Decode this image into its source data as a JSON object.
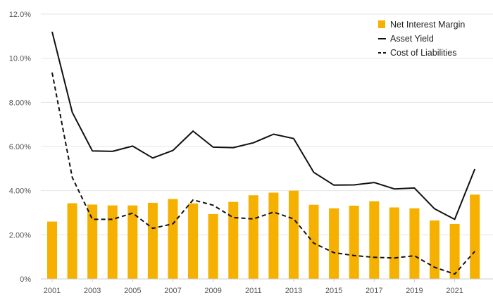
{
  "chart_data": {
    "type": "bar",
    "title": "",
    "xlabel": "",
    "ylabel": "",
    "ylim": [
      0,
      12
    ],
    "grid": true,
    "legend_position": "top-right",
    "categories": [
      "2001",
      "2002",
      "2003",
      "2004",
      "2005",
      "2006",
      "2007",
      "2008",
      "2009",
      "2010",
      "2011",
      "2012",
      "2013",
      "2014",
      "2015",
      "2016",
      "2017",
      "2018",
      "2019",
      "2020",
      "2021",
      "2022"
    ],
    "x_tick_labels": [
      "2001",
      "2003",
      "2005",
      "2007",
      "2009",
      "2011",
      "2013",
      "2015",
      "2017",
      "2019",
      "2021"
    ],
    "y_ticks": [
      0,
      2,
      4,
      6,
      8,
      10,
      12
    ],
    "y_tick_labels": [
      "0%",
      "2.00%",
      "4.00%",
      "6.00%",
      "8.00%",
      "10.0%",
      "12.0%"
    ],
    "series": [
      {
        "name": "Net Interest Margin",
        "kind": "bar",
        "color": "#f5b000",
        "values": [
          2.6,
          3.43,
          3.37,
          3.33,
          3.33,
          3.45,
          3.62,
          3.42,
          2.94,
          3.49,
          3.79,
          3.91,
          4.0,
          3.36,
          3.2,
          3.32,
          3.52,
          3.24,
          3.2,
          2.65,
          2.49,
          3.82
        ]
      },
      {
        "name": "Asset Yield",
        "kind": "line",
        "style": "solid",
        "color": "#111111",
        "values": [
          11.2,
          7.55,
          5.8,
          5.78,
          6.02,
          5.48,
          5.82,
          6.7,
          5.97,
          5.95,
          6.17,
          6.56,
          6.36,
          4.83,
          4.25,
          4.26,
          4.37,
          4.08,
          4.12,
          3.18,
          2.7,
          4.98
        ]
      },
      {
        "name": "Cost of Liabilities",
        "kind": "line",
        "style": "dashed",
        "color": "#111111",
        "values": [
          9.35,
          4.6,
          2.7,
          2.7,
          2.98,
          2.29,
          2.5,
          3.58,
          3.34,
          2.78,
          2.72,
          3.03,
          2.72,
          1.62,
          1.19,
          1.06,
          0.98,
          0.95,
          1.05,
          0.53,
          0.22,
          1.25
        ]
      }
    ]
  }
}
